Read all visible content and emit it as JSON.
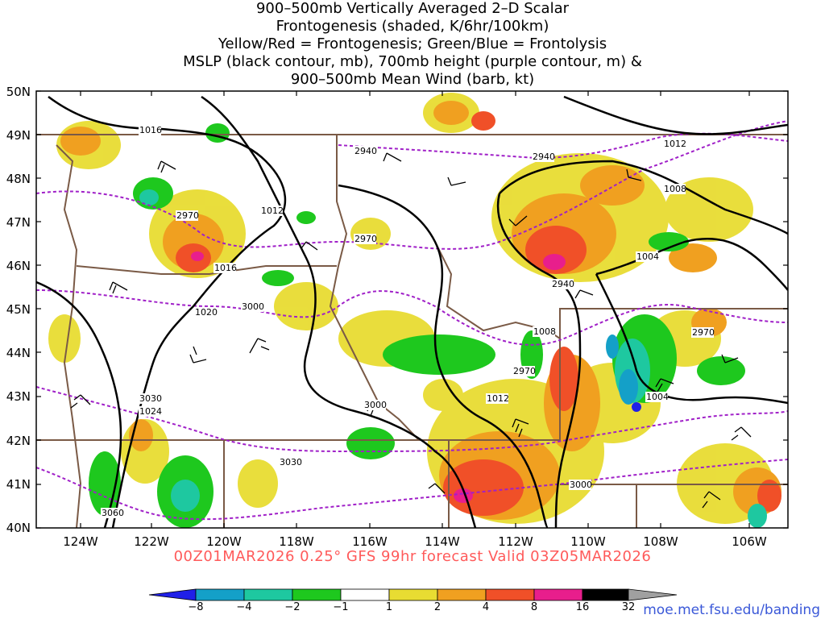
{
  "title_lines": [
    "900–500mb Vertically Averaged 2–D Scalar",
    "Frontogenesis (shaded, K/6hr/100km)",
    "Yellow/Red = Frontogenesis;  Green/Blue = Frontolysis",
    "MSLP (black contour, mb), 700mb height (purple contour, m) &",
    "900–500mb Mean Wind (barb, kt)"
  ],
  "lat_labels": [
    "50N",
    "49N",
    "48N",
    "47N",
    "46N",
    "45N",
    "44N",
    "43N",
    "42N",
    "41N",
    "40N"
  ],
  "lon_labels": [
    "124W",
    "122W",
    "120W",
    "118W",
    "116W",
    "114W",
    "112W",
    "110W",
    "108W",
    "106W"
  ],
  "mslp_labels": [
    "1016",
    "1012",
    "1016",
    "1020",
    "1024",
    "1008",
    "1012",
    "1004",
    "1012",
    "1008",
    "1004"
  ],
  "height_labels": [
    "2940",
    "2940",
    "2970",
    "2970",
    "3000",
    "3000",
    "3030",
    "3030",
    "3060",
    "2940",
    "2970",
    "2970",
    "3000"
  ],
  "footer": "00Z01MAR2026 0.25° GFS 99hr forecast Valid 03Z05MAR2026",
  "credit": "moe.met.fsu.edu/banding",
  "colorbar": {
    "labels": [
      "−8",
      "−4",
      "−2",
      "−1",
      "1",
      "2",
      "4",
      "8",
      "16",
      "32"
    ],
    "colors": [
      "#2020e8",
      "#14a0c8",
      "#1ec8a0",
      "#1ec81e",
      "#ffffff",
      "#e8dc32",
      "#f0a020",
      "#f05028",
      "#e81e8c",
      "#000000",
      "#a0a0a0"
    ]
  },
  "colors": {
    "mslp": "#000000",
    "height": "#a020c8",
    "borders": "#7a5a46",
    "footer": "#ff5a5a",
    "credit": "#3a58d8"
  }
}
